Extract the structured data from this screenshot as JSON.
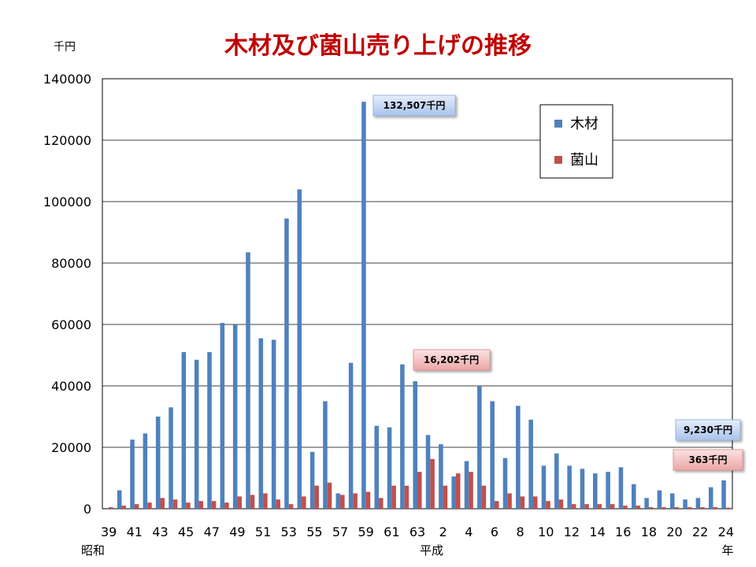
{
  "chart_data": {
    "type": "bar",
    "title": "木材及び菌山売り上げの推移",
    "unit_label": "千円",
    "ylim": [
      0,
      140000
    ],
    "yticks": [
      0,
      20000,
      40000,
      60000,
      80000,
      100000,
      120000,
      140000
    ],
    "grid": true,
    "legend_position": "top-right",
    "categories": [
      "39",
      "40",
      "41",
      "42",
      "43",
      "44",
      "45",
      "46",
      "47",
      "48",
      "49",
      "50",
      "51",
      "52",
      "53",
      "54",
      "55",
      "56",
      "57",
      "58",
      "59",
      "60",
      "61",
      "62",
      "63",
      "1",
      "2",
      "3",
      "4",
      "5",
      "6",
      "7",
      "8",
      "9",
      "10",
      "11",
      "12",
      "13",
      "14",
      "15",
      "16",
      "17",
      "18",
      "19",
      "20",
      "21",
      "22",
      "23",
      "24"
    ],
    "x_tick_labels": [
      "39",
      "41",
      "43",
      "45",
      "47",
      "49",
      "51",
      "53",
      "55",
      "57",
      "59",
      "61",
      "63",
      "2",
      "4",
      "6",
      "8",
      "10",
      "12",
      "14",
      "16",
      "18",
      "20",
      "22",
      "24"
    ],
    "era_labels": {
      "left": "昭和",
      "middle": "平成",
      "end": "年"
    },
    "series": [
      {
        "name": "木材",
        "color": "#4f81bd",
        "values": [
          0,
          6000,
          22500,
          24500,
          30000,
          33000,
          51000,
          48500,
          51000,
          60500,
          60000,
          83500,
          55500,
          55000,
          94500,
          104000,
          18500,
          35000,
          5000,
          47500,
          132507,
          27000,
          26500,
          47000,
          41500,
          24000,
          21000,
          10500,
          15500,
          40000,
          35000,
          16500,
          33500,
          29000,
          14000,
          18000,
          14000,
          13000,
          11500,
          12000,
          13500,
          8000,
          3500,
          6000,
          5000,
          3000,
          3500,
          7000,
          9230
        ]
      },
      {
        "name": "菌山",
        "color": "#c0504d",
        "values": [
          500,
          1000,
          1500,
          2000,
          3500,
          3000,
          2000,
          2500,
          2500,
          2000,
          4000,
          4500,
          5000,
          3000,
          1500,
          4000,
          7500,
          8500,
          4500,
          5000,
          5500,
          3500,
          7500,
          7500,
          12000,
          16202,
          7500,
          11500,
          12000,
          7500,
          2500,
          5000,
          4000,
          4000,
          2500,
          3000,
          1500,
          1500,
          1500,
          1500,
          1000,
          1000,
          500,
          500,
          500,
          500,
          500,
          500,
          363
        ]
      }
    ],
    "annotations": [
      {
        "text": "132,507千円",
        "series": "木材",
        "category": "59",
        "style": "blue"
      },
      {
        "text": "16,202千円",
        "series": "菌山",
        "category": "1",
        "style": "red"
      },
      {
        "text": "9,230千円",
        "series": "木材",
        "category": "24",
        "style": "blue"
      },
      {
        "text": "363千円",
        "series": "菌山",
        "category": "24",
        "style": "red"
      }
    ]
  }
}
